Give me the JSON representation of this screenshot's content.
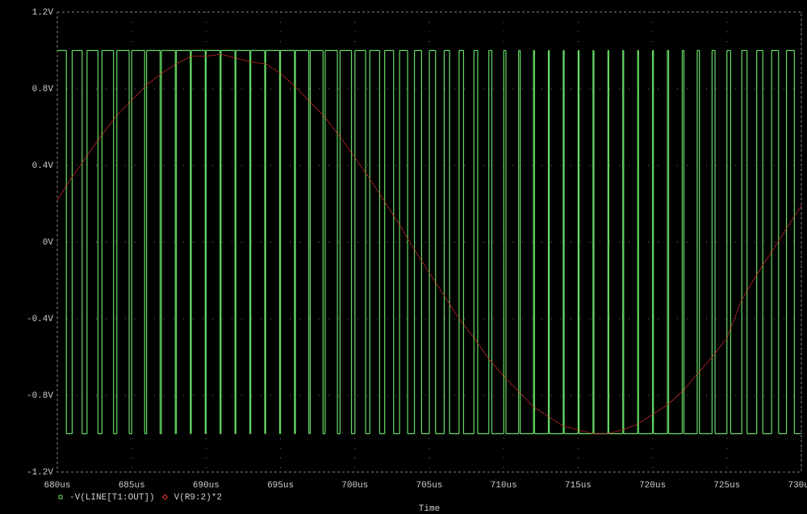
{
  "chart_data": {
    "type": "line",
    "xlabel": "Time",
    "xlim": [
      680,
      730
    ],
    "ylim": [
      -1.2,
      1.2
    ],
    "xticks": [
      {
        "value": 680,
        "label": "680us"
      },
      {
        "value": 685,
        "label": "685us"
      },
      {
        "value": 690,
        "label": "690us"
      },
      {
        "value": 695,
        "label": "695us"
      },
      {
        "value": 700,
        "label": "700us"
      },
      {
        "value": 705,
        "label": "705us"
      },
      {
        "value": 710,
        "label": "710us"
      },
      {
        "value": 715,
        "label": "715us"
      },
      {
        "value": 720,
        "label": "720us"
      },
      {
        "value": 725,
        "label": "725us"
      },
      {
        "value": 730,
        "label": "730us"
      }
    ],
    "yticks": [
      {
        "value": 1.2,
        "label": "1.2V"
      },
      {
        "value": 0.8,
        "label": "0.8V"
      },
      {
        "value": 0.4,
        "label": "0.4V"
      },
      {
        "value": 0,
        "label": "0V"
      },
      {
        "value": -0.4,
        "label": "-0.4V"
      },
      {
        "value": -0.8,
        "label": "-0.8V"
      },
      {
        "value": -1.2,
        "label": "-1.2V"
      }
    ],
    "grid": true,
    "series": [
      {
        "name": "-V(LINE[T1:OUT])",
        "color": "#66dd66",
        "step": true,
        "marker": "square",
        "x": [
          680,
          680.61,
          681,
          681.67,
          682,
          682.73,
          683,
          683.78,
          684,
          684.83,
          685,
          685.87,
          686,
          686.91,
          687,
          687.93,
          688,
          688.94,
          689,
          689.94,
          690,
          690.94,
          691,
          691.94,
          692,
          692.94,
          693,
          693.94,
          694,
          694.94,
          695,
          695.94,
          696,
          696.9,
          697,
          697.86,
          698,
          698.82,
          699,
          699.77,
          700,
          700.72,
          701,
          701.66,
          702,
          702.6,
          703,
          703.54,
          704,
          704.48,
          705,
          705.42,
          706,
          706.36,
          707,
          707.3,
          708,
          708.25,
          709,
          709.2,
          710,
          710.15,
          711,
          711.11,
          712,
          712.07,
          713,
          713.06,
          714,
          714.06,
          715,
          715.06,
          716,
          716.06,
          717,
          717.06,
          718,
          718.06,
          719,
          719.06,
          720,
          720.06,
          721,
          721.08,
          722,
          722.11,
          723,
          723.15,
          724,
          724.2,
          725,
          725.25,
          726,
          726.35,
          727,
          727.41,
          728,
          728.47,
          729,
          729.53
        ],
        "values": [
          1,
          -1,
          1,
          -1,
          1,
          -1,
          1,
          -1,
          1,
          -1,
          1,
          -1,
          1,
          -1,
          1,
          -1,
          1,
          -1,
          1,
          -1,
          1,
          -1,
          1,
          -1,
          1,
          -1,
          1,
          -1,
          1,
          -1,
          1,
          -1,
          1,
          -1,
          1,
          -1,
          1,
          -1,
          1,
          -1,
          1,
          -1,
          1,
          -1,
          1,
          -1,
          1,
          -1,
          1,
          -1,
          1,
          -1,
          1,
          -1,
          1,
          -1,
          1,
          -1,
          1,
          -1,
          1,
          -1,
          1,
          -1,
          1,
          -1,
          1,
          -1,
          1,
          -1,
          1,
          -1,
          1,
          -1,
          1,
          -1,
          1,
          -1,
          1,
          -1,
          1,
          -1,
          1,
          -1,
          1,
          -1,
          1,
          -1,
          1,
          -1,
          1,
          -1,
          1,
          -1,
          1,
          -1,
          1,
          -1,
          1,
          -1
        ]
      },
      {
        "name": "V(R9:2)*2",
        "color": "#e03030",
        "marker": "diamond",
        "x": [
          680,
          681,
          682,
          683,
          684,
          685,
          686,
          687,
          688,
          689,
          690,
          691,
          692,
          693,
          694,
          695,
          696,
          697,
          698,
          699,
          700,
          701,
          702,
          703,
          704,
          705,
          706,
          707,
          708,
          709,
          710,
          711,
          712,
          713,
          714,
          715,
          716,
          717,
          718,
          719,
          720,
          721,
          722,
          723,
          724,
          725,
          726,
          727,
          728,
          729,
          730
        ],
        "values": [
          0.22,
          0.34,
          0.45,
          0.56,
          0.66,
          0.74,
          0.82,
          0.88,
          0.93,
          0.97,
          0.97,
          0.98,
          0.96,
          0.94,
          0.93,
          0.88,
          0.81,
          0.73,
          0.65,
          0.55,
          0.44,
          0.33,
          0.21,
          0.09,
          -0.04,
          -0.16,
          -0.28,
          -0.4,
          -0.5,
          -0.61,
          -0.7,
          -0.78,
          -0.86,
          -0.91,
          -0.96,
          -0.98,
          -1.0,
          -1.0,
          -0.98,
          -0.95,
          -0.9,
          -0.85,
          -0.78,
          -0.69,
          -0.6,
          -0.5,
          -0.3,
          -0.17,
          -0.05,
          0.07,
          0.19
        ]
      }
    ]
  }
}
